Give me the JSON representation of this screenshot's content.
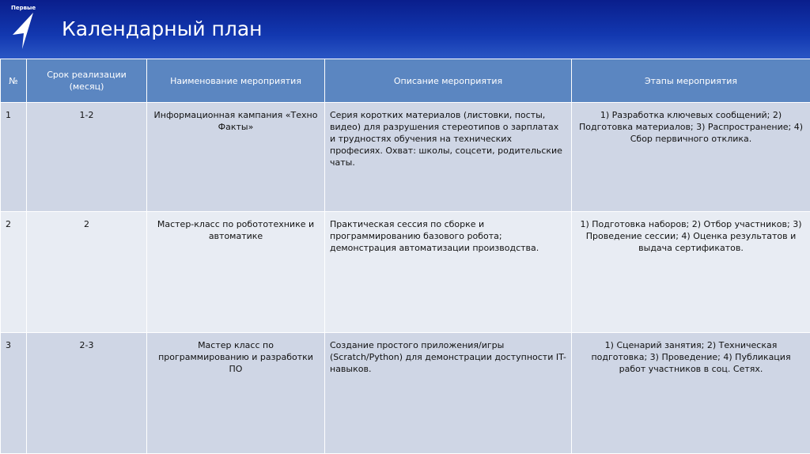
{
  "header": {
    "logo_text": "Первые",
    "title": "Календарный план"
  },
  "colors": {
    "banner": "#1238b0",
    "header_row": "#5b86c1",
    "row_odd": "#cfd6e5",
    "row_even": "#e8ecf3"
  },
  "table": {
    "columns": [
      "№",
      "Срок реализации (месяц)",
      "Наименование мероприятия",
      "Описание мероприятия",
      "Этапы мероприятия"
    ],
    "rows": [
      {
        "num": "1",
        "term": "1-2",
        "name": "Информационная кампания «Техно Факты»",
        "description": "Серия коротких материалов (листовки, посты, видео) для разрушения стереотипов о зарплатах и трудностях обучения на технических професиях. Охват: школы, соцсети, родительские чаты.",
        "stages": "1) Разработка ключевых сообщений; 2) Подготовка материалов; 3) Распространение; 4) Сбор первичного отклика."
      },
      {
        "num": "2",
        "term": "2",
        "name": "Мастер-класс по робототехнике и автоматике",
        "description": "Практическая сессия по сборке и программированию базового робота; демонстрация автоматизации производства.",
        "stages": "1) Подготовка наборов; 2) Отбор участников; 3) Проведение сессии; 4) Оценка результатов и выдача сертификатов."
      },
      {
        "num": "3",
        "term": "2-3",
        "name": "Мастер класс по программированию и разработки ПО",
        "description": "Создание простого приложения/игры (Scratch/Python) для демонстрации доступности IT-навыков.",
        "stages": "1) Сценарий занятия; 2) Техническая подготовка; 3) Проведение; 4) Публикация работ участников в соц. Сетях."
      }
    ]
  }
}
